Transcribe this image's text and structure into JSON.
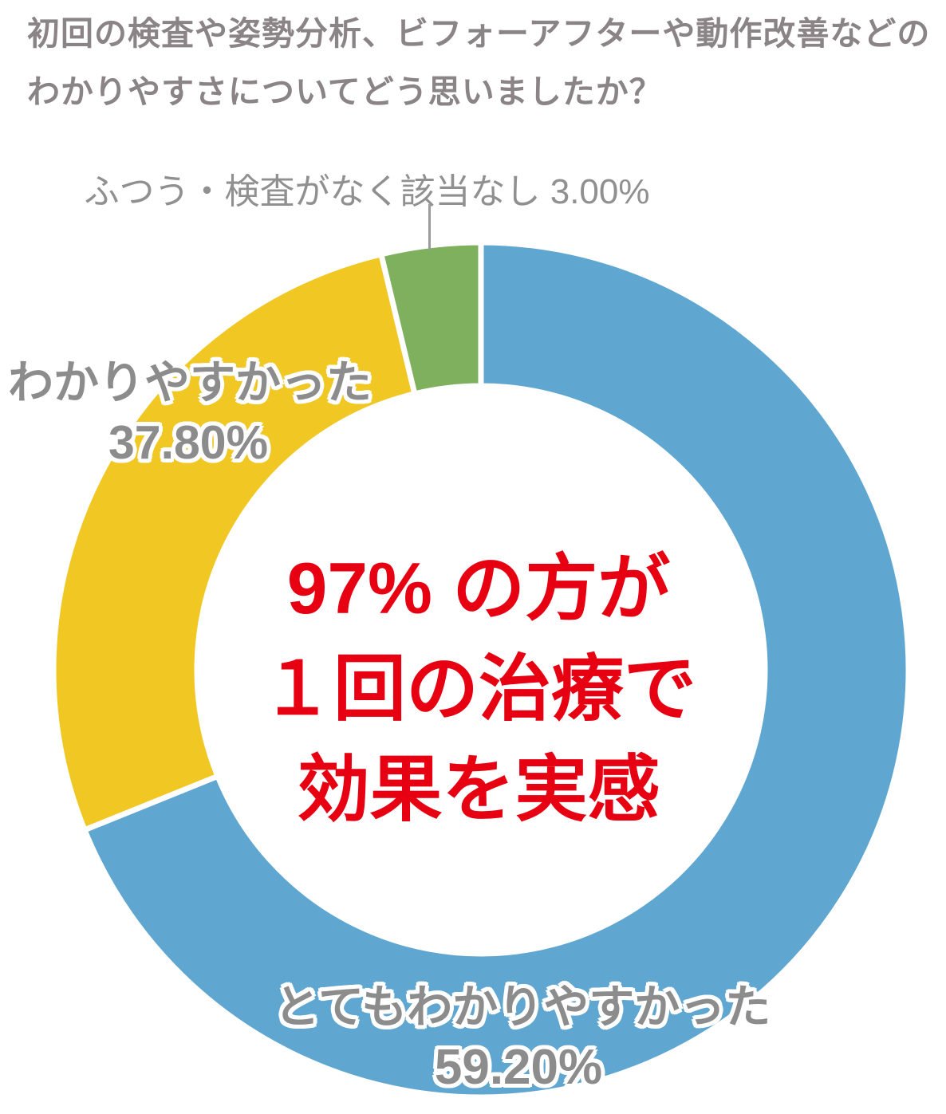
{
  "title": {
    "line1": "初回の検査や姿勢分析、ビフォーアフターや動作改善などの",
    "line2": "わかりやすさについてどう思いましたか？"
  },
  "chart_data": {
    "type": "pie",
    "donut": true,
    "title": "初回の検査や姿勢分析、ビフォーアフターや動作改善などのわかりやすさについてどう思いましたか？",
    "legend_position": "labels-on-chart",
    "segments": [
      {
        "id": "very-clear",
        "label": "とてもわかりやすかった",
        "value": 59.2,
        "value_label": "59.20%",
        "color": "#5fa6d1",
        "drawn_start_deg": 0,
        "drawn_end_deg": 248
      },
      {
        "id": "clear",
        "label": "わかりやすかった",
        "value": 37.8,
        "value_label": "37.80%",
        "color": "#f1c723",
        "drawn_start_deg": 248,
        "drawn_end_deg": 346.5
      },
      {
        "id": "neutral-no-exam",
        "label": "ふつう・検査がなく該当なし",
        "value": 3.0,
        "value_label": "3.00%",
        "color": "#7eb05d",
        "drawn_start_deg": 346.5,
        "drawn_end_deg": 360
      }
    ],
    "center_text": {
      "line1": "97% の方が",
      "line2": "１回の治療で",
      "line3": "効果を実感"
    }
  },
  "colors": {
    "background": "#ffffff",
    "title-gray": "#8b8487",
    "label-gray": "#8c8c8c",
    "callout-gray": "#909090",
    "leader-gray": "#9b9b9b",
    "accent-red": "#e60012",
    "segment-gap": "#ffffff"
  }
}
